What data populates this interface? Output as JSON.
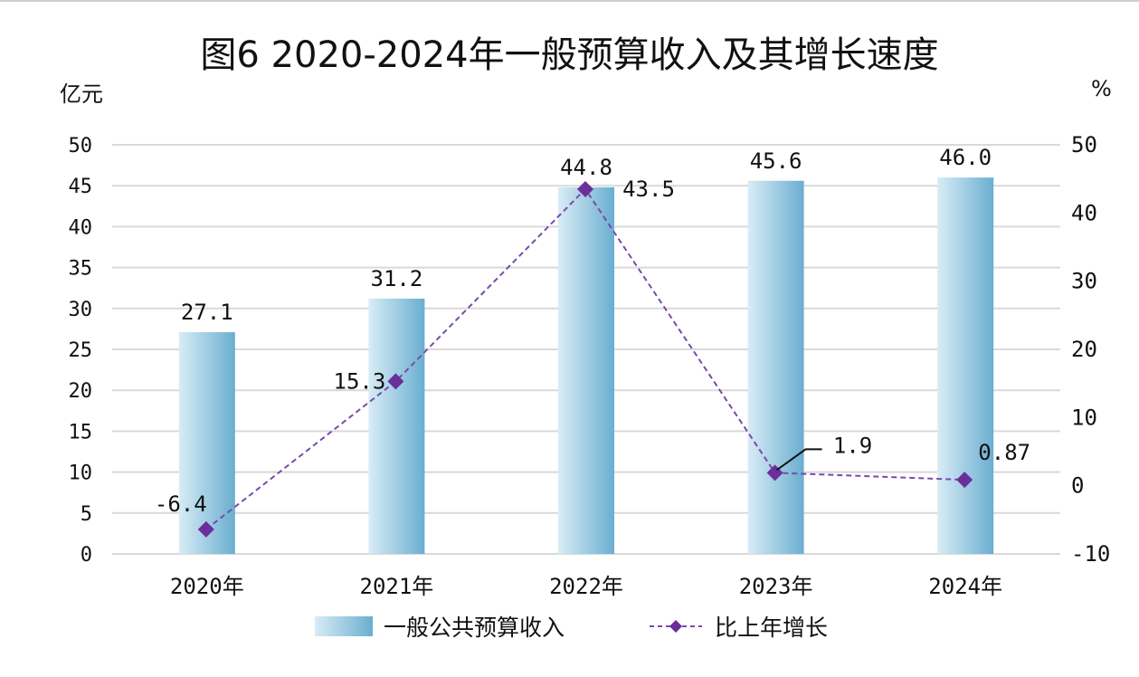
{
  "chart_data": {
    "type": "bar+line",
    "title": "图6 2020-2024年一般预算收入及其增长速度",
    "left_axis": {
      "unit": "亿元",
      "ylim": [
        0,
        50
      ],
      "ticks": [
        0,
        5,
        10,
        15,
        20,
        25,
        30,
        35,
        40,
        45,
        50
      ]
    },
    "right_axis": {
      "unit": "%",
      "ylim": [
        -10,
        50
      ],
      "ticks": [
        -10,
        0,
        10,
        20,
        30,
        40,
        50
      ]
    },
    "categories": [
      "2020年",
      "2021年",
      "2022年",
      "2023年",
      "2024年"
    ],
    "series": [
      {
        "name": "一般公共预算收入",
        "kind": "bar",
        "axis": "left",
        "values": [
          27.1,
          31.2,
          44.8,
          45.6,
          46.0
        ],
        "labels": [
          "27.1",
          "31.2",
          "44.8",
          "45.6",
          "46.0"
        ]
      },
      {
        "name": "比上年增长",
        "kind": "line",
        "axis": "right",
        "values": [
          -6.4,
          15.3,
          43.5,
          1.9,
          0.87
        ],
        "labels": [
          "-6.4",
          "15.3",
          "43.5",
          "1.9",
          "0.87"
        ]
      }
    ],
    "grid": true,
    "legend_position": "bottom",
    "colors": {
      "bar_light": "#cfe6f2",
      "bar_dark": "#6fb2d2",
      "line": "#7a4aa8",
      "marker": "#6a2f9a",
      "grid": "#d9d9d9"
    }
  }
}
